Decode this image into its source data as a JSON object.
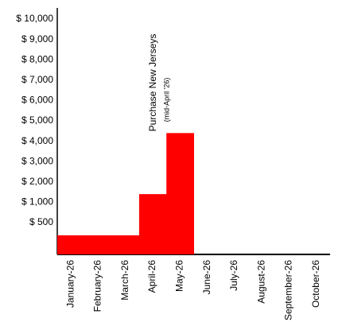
{
  "chart_data": {
    "type": "bar",
    "categories": [
      "January-26",
      "February-26",
      "March-26",
      "April-26",
      "May-26",
      "June-26",
      "July-26",
      "August-26",
      "September-26",
      "October-26"
    ],
    "values": [
      300,
      300,
      300,
      1400,
      4400,
      null,
      null,
      null,
      null,
      null
    ],
    "color": "#ff0000",
    "ylim": [
      0,
      10000
    ],
    "yticks": [
      {
        "value": 500,
        "label": "$ 500"
      },
      {
        "value": 1000,
        "label": "$ 1,000"
      },
      {
        "value": 2000,
        "label": "$ 2,000"
      },
      {
        "value": 3000,
        "label": "$ 3,000"
      },
      {
        "value": 4000,
        "label": "$ 4,000"
      },
      {
        "value": 5000,
        "label": "$ 5,000"
      },
      {
        "value": 6000,
        "label": "$ 6,000"
      },
      {
        "value": 7000,
        "label": "$ 7,000"
      },
      {
        "value": 8000,
        "label": "$ 8,000"
      },
      {
        "value": 9000,
        "label": "$ 9,000"
      },
      {
        "value": 10000,
        "label": "$ 10,000"
      }
    ],
    "annotations": [
      "Purchase New Jerseys",
      "(mid-April '26)"
    ]
  }
}
